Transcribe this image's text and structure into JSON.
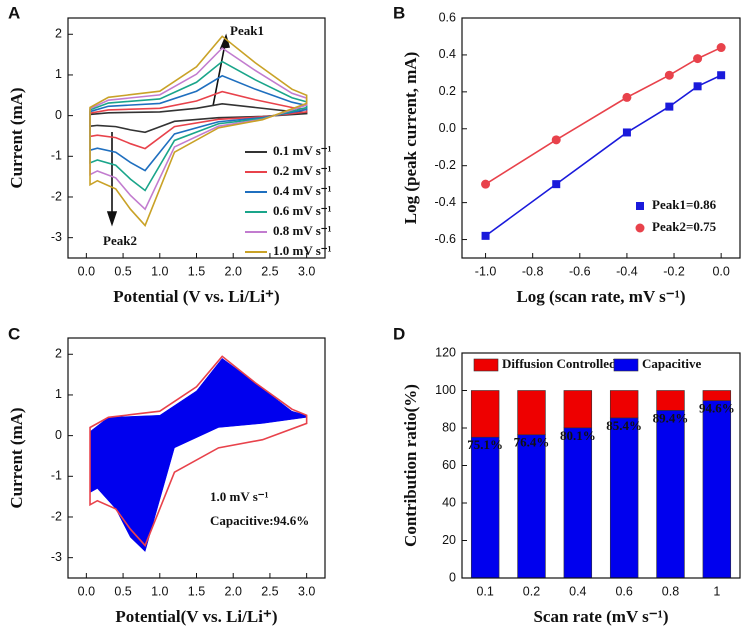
{
  "chart_data": [
    {
      "type": "line",
      "label": "A",
      "xlabel": "Potential (V vs. Li/Li⁺)",
      "ylabel": "Current (mA)",
      "closed": true,
      "legend": "lower right",
      "x": [
        0.05,
        0.3,
        1.0,
        1.5,
        1.85,
        2.3,
        2.8,
        3.0,
        3.0,
        2.4,
        1.8,
        1.2,
        0.8,
        0.6,
        0.4,
        0.15,
        0.05
      ],
      "series": [
        {
          "name": "0.1 mV s⁻¹",
          "color": "#333333",
          "values": [
            0.03,
            0.07,
            0.09,
            0.18,
            0.29,
            0.2,
            0.1,
            0.08,
            0.05,
            -0.02,
            -0.05,
            -0.14,
            -0.41,
            -0.35,
            -0.27,
            -0.24,
            -0.26
          ]
        },
        {
          "name": "0.2 mV s⁻¹",
          "color": "#e8424b",
          "values": [
            0.06,
            0.14,
            0.18,
            0.36,
            0.59,
            0.39,
            0.2,
            0.15,
            0.09,
            -0.03,
            -0.09,
            -0.27,
            -0.81,
            -0.69,
            -0.54,
            -0.48,
            -0.51
          ]
        },
        {
          "name": "0.4 mV s⁻¹",
          "color": "#1f6fbf",
          "values": [
            0.1,
            0.23,
            0.3,
            0.6,
            0.98,
            0.65,
            0.33,
            0.25,
            0.15,
            -0.05,
            -0.15,
            -0.45,
            -1.35,
            -1.15,
            -0.9,
            -0.8,
            -0.85
          ]
        },
        {
          "name": "0.6 mV s⁻¹",
          "color": "#1aa58a",
          "values": [
            0.14,
            0.31,
            0.41,
            0.82,
            1.33,
            0.88,
            0.44,
            0.34,
            0.2,
            -0.07,
            -0.2,
            -0.61,
            -1.84,
            -1.56,
            -1.22,
            -1.09,
            -1.16
          ]
        },
        {
          "name": "0.8 mV s⁻¹",
          "color": "#c27ccf",
          "values": [
            0.17,
            0.38,
            0.51,
            1.02,
            1.66,
            1.11,
            0.55,
            0.43,
            0.26,
            -0.09,
            -0.26,
            -0.77,
            -2.3,
            -1.96,
            -1.53,
            -1.36,
            -1.45
          ]
        },
        {
          "name": "1.0 mV s⁻¹",
          "color": "#c9a227",
          "values": [
            0.2,
            0.45,
            0.6,
            1.2,
            1.95,
            1.3,
            0.65,
            0.5,
            0.3,
            -0.1,
            -0.3,
            -0.9,
            -2.7,
            -2.3,
            -1.8,
            -1.6,
            -1.7
          ]
        }
      ],
      "annotations": [
        "Peak1",
        "Peak2"
      ],
      "xlim": [
        -0.25,
        3.25
      ],
      "xticks": [
        {
          "value": 0,
          "label": "0.0"
        },
        {
          "value": 0.5,
          "label": "0.5"
        },
        {
          "value": 1,
          "label": "1.0"
        },
        {
          "value": 1.5,
          "label": "1.5"
        },
        {
          "value": 2,
          "label": "2.0"
        },
        {
          "value": 2.5,
          "label": "2.5"
        },
        {
          "value": 3,
          "label": "3.0"
        }
      ],
      "ylim": [
        -3.5,
        2.4
      ],
      "yticks": [
        -3,
        -2,
        -1,
        0,
        1,
        2
      ]
    },
    {
      "type": "scatter",
      "label": "B",
      "xlabel": "Log (scan rate, mV s⁻¹)",
      "ylabel": "Log (peak current, mA)",
      "legend": "lower right",
      "connect": true,
      "x": [
        -1,
        -0.7,
        -0.4,
        -0.22,
        -0.1,
        0
      ],
      "series": [
        {
          "name": "Peak1=0.86",
          "color": "#1a1adb",
          "marker": "square",
          "values": [
            -0.58,
            -0.3,
            -0.02,
            0.12,
            0.23,
            0.29
          ]
        },
        {
          "name": "Peak2=0.75",
          "color": "#e8424b",
          "marker": "circle",
          "values": [
            -0.3,
            -0.06,
            0.17,
            0.29,
            0.38,
            0.44
          ]
        }
      ],
      "xlim": [
        -1.1,
        0.08
      ],
      "xticks": [
        {
          "value": -1,
          "label": "-1.0"
        },
        {
          "value": -0.8,
          "label": "-0.8"
        },
        {
          "value": -0.6,
          "label": "-0.6"
        },
        {
          "value": -0.4,
          "label": "-0.4"
        },
        {
          "value": -0.2,
          "label": "-0.2"
        },
        {
          "value": 0,
          "label": "0.0"
        }
      ],
      "ylim": [
        -0.7,
        0.6
      ],
      "yticks": [
        {
          "value": -0.6,
          "label": "-0.6"
        },
        {
          "value": -0.4,
          "label": "-0.4"
        },
        {
          "value": -0.2,
          "label": "-0.2"
        },
        {
          "value": 0,
          "label": "0.0"
        },
        {
          "value": 0.2,
          "label": "0.2"
        },
        {
          "value": 0.4,
          "label": "0.4"
        },
        {
          "value": 0.6,
          "label": "0.6"
        }
      ]
    },
    {
      "type": "line",
      "label": "C",
      "xlabel": "Potential(V vs. Li/Li⁺)",
      "ylabel": "Current (mA)",
      "closed": true,
      "x": [
        0.05,
        0.3,
        1.0,
        1.5,
        1.85,
        2.3,
        2.8,
        3.0,
        3.0,
        2.4,
        1.8,
        1.2,
        0.8,
        0.6,
        0.4,
        0.15,
        0.05
      ],
      "series": [
        {
          "color": "#0000ee",
          "fill": true,
          "values": [
            0.1,
            0.45,
            0.5,
            1.1,
            1.9,
            1.3,
            0.6,
            0.5,
            0.45,
            0.3,
            0.2,
            -0.3,
            -2.85,
            -2.5,
            -1.8,
            -1.3,
            -1.4
          ]
        },
        {
          "color": "#e8424b",
          "fill": false,
          "values": [
            0.2,
            0.45,
            0.6,
            1.2,
            1.95,
            1.3,
            0.65,
            0.5,
            0.3,
            -0.1,
            -0.3,
            -0.9,
            -2.7,
            -2.3,
            -1.8,
            -1.6,
            -1.7
          ]
        }
      ],
      "annotations": [
        "1.0 mV s⁻¹",
        "Capacitive:94.6%"
      ],
      "xlim": [
        -0.25,
        3.25
      ],
      "xticks": [
        {
          "value": 0,
          "label": "0.0"
        },
        {
          "value": 0.5,
          "label": "0.5"
        },
        {
          "value": 1,
          "label": "1.0"
        },
        {
          "value": 1.5,
          "label": "1.5"
        },
        {
          "value": 2,
          "label": "2.0"
        },
        {
          "value": 2.5,
          "label": "2.5"
        },
        {
          "value": 3,
          "label": "3.0"
        }
      ],
      "ylim": [
        -3.5,
        2.4
      ],
      "yticks": [
        -3,
        -2,
        -1,
        0,
        1,
        2
      ]
    },
    {
      "type": "stacked_bar",
      "label": "D",
      "xlabel": "Scan rate (mV s⁻¹)",
      "ylabel": "Contribution ratio(%)",
      "legend": "upper",
      "categories": [
        "0.1",
        "0.2",
        "0.4",
        "0.6",
        "0.8",
        "1"
      ],
      "series": [
        {
          "name": "Capacitive",
          "color": "#0000ee",
          "values": [
            75.1,
            76.4,
            80.1,
            85.4,
            89.4,
            94.6
          ],
          "value_labels": [
            "75.1%",
            "76.4%",
            "80.1%",
            "85.4%",
            "89.4%",
            "94.6%"
          ]
        },
        {
          "name": "Diffusion Controlled",
          "color": "#ee0000",
          "values": [
            24.9,
            23.6,
            19.9,
            14.6,
            10.6,
            5.4
          ]
        }
      ],
      "ylim": [
        0,
        120
      ],
      "yticks": [
        0,
        20,
        40,
        60,
        80,
        100,
        120
      ]
    }
  ]
}
